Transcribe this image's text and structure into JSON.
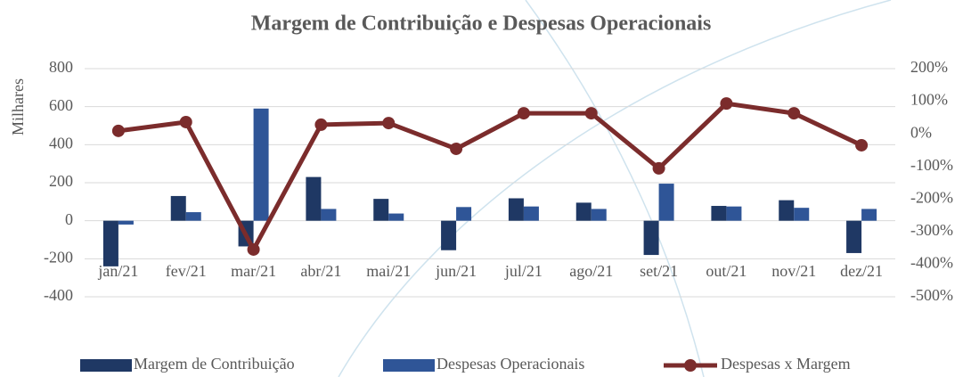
{
  "chart_data": {
    "type": "bar_line",
    "title": "Margem de Contribuição e Despesas Operacionais",
    "y_label": "Milhares",
    "categories": [
      "jan/21",
      "fev/21",
      "mar/21",
      "abr/21",
      "mai/21",
      "jun/21",
      "jul/21",
      "ago/21",
      "set/21",
      "out/21",
      "nov/21",
      "dez/21"
    ],
    "series": [
      {
        "name": "Margem de Contribuição",
        "color": "#1f3864",
        "type": "bar",
        "values": [
          -240,
          130,
          -135,
          230,
          115,
          -155,
          118,
          95,
          -180,
          78,
          108,
          -170
        ]
      },
      {
        "name": "Despesas Operacionais",
        "color": "#2f5597",
        "type": "bar",
        "values": [
          -20,
          45,
          590,
          62,
          38,
          72,
          75,
          62,
          195,
          75,
          68,
          62
        ]
      },
      {
        "name": "Despesas x Margem",
        "color": "#7b2c2c",
        "type": "line",
        "axis": "y2",
        "values": [
          9,
          36,
          -355,
          28,
          33,
          -46,
          63,
          63,
          -106,
          93,
          63,
          -35
        ]
      }
    ],
    "ylim": [
      -400,
      800
    ],
    "yticks": [
      -400,
      -200,
      0,
      200,
      400,
      600,
      800
    ],
    "y2lim": [
      -500,
      200
    ],
    "y2ticks": [
      {
        "value": -500,
        "label": "-500%"
      },
      {
        "value": -400,
        "label": "-400%"
      },
      {
        "value": -300,
        "label": "-300%"
      },
      {
        "value": -200,
        "label": "-200%"
      },
      {
        "value": -100,
        "label": "-100%"
      },
      {
        "value": 0,
        "label": "0%"
      },
      {
        "value": 100,
        "label": "100%"
      },
      {
        "value": 200,
        "label": "200%"
      }
    ],
    "grid": true,
    "legend": "bottom"
  }
}
